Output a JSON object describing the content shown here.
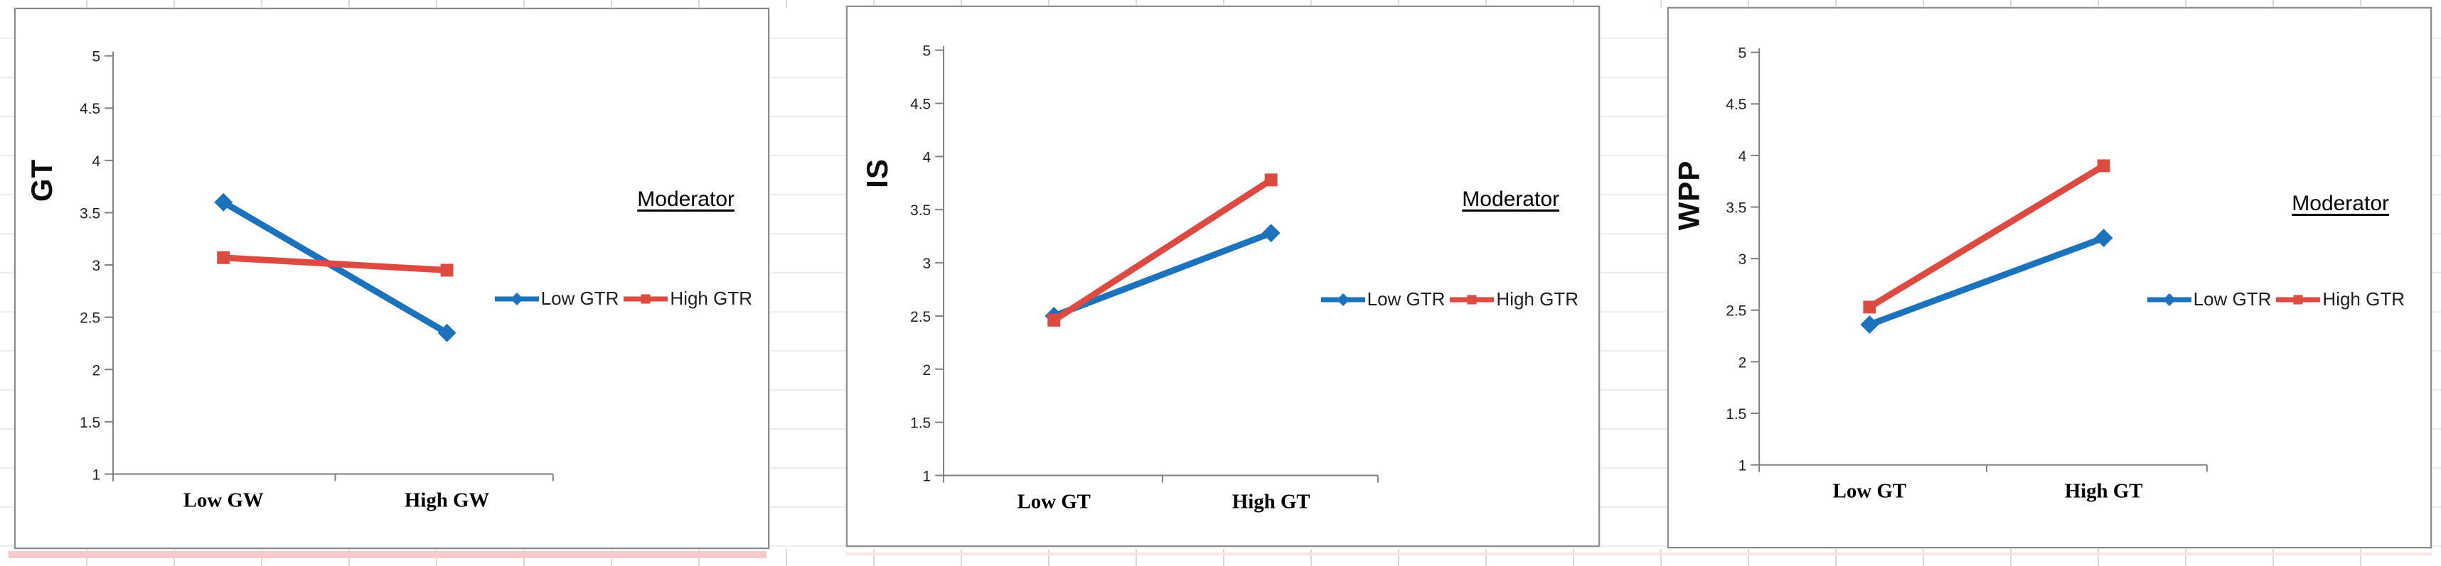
{
  "figure": {
    "description": "Three two-way interaction plots on an Excel worksheet",
    "moderator_heading": "Moderator"
  },
  "colors": {
    "series_low_gtr_blue": "#1C73BC",
    "series_high_gtr_red": "#DC4B42",
    "axis_gray": "#7f7f7f",
    "chart_border_gray": "#8c8c8c",
    "worksheet_row_band_pink": "#F5CACA",
    "worksheet_row_line_pink": "#FBE6E6",
    "worksheet_gridline_gray": "#d9d9d9"
  },
  "chart_data": [
    {
      "type": "line",
      "title": "",
      "xlabel": "",
      "ylabel": "GT",
      "categories": [
        "Low GW",
        "High GW"
      ],
      "series": [
        {
          "name": "Low GTR",
          "marker": "diamond",
          "color": "#1C73BC",
          "values": [
            3.6,
            2.35
          ]
        },
        {
          "name": "High GTR",
          "marker": "square",
          "color": "#DC4B42",
          "values": [
            3.07,
            2.95
          ]
        }
      ],
      "ylim": [
        1,
        5
      ],
      "yticks": [
        1,
        1.5,
        2,
        2.5,
        3,
        3.5,
        4,
        4.5,
        5
      ],
      "grid": false,
      "legend_position": "right",
      "annotation": "Moderator"
    },
    {
      "type": "line",
      "title": "",
      "xlabel": "",
      "ylabel": "IS",
      "categories": [
        "Low GT",
        "High GT"
      ],
      "series": [
        {
          "name": "Low GTR",
          "marker": "diamond",
          "color": "#1C73BC",
          "values": [
            2.5,
            3.28
          ]
        },
        {
          "name": "High GTR",
          "marker": "square",
          "color": "#DC4B42",
          "values": [
            2.46,
            3.78
          ]
        }
      ],
      "ylim": [
        1,
        5
      ],
      "yticks": [
        1,
        1.5,
        2,
        2.5,
        3,
        3.5,
        4,
        4.5,
        5
      ],
      "grid": false,
      "legend_position": "right",
      "annotation": "Moderator"
    },
    {
      "type": "line",
      "title": "",
      "xlabel": "",
      "ylabel": "WPP",
      "categories": [
        "Low GT",
        "High GT"
      ],
      "series": [
        {
          "name": "Low GTR",
          "marker": "diamond",
          "color": "#1C73BC",
          "values": [
            2.36,
            3.2
          ]
        },
        {
          "name": "High GTR",
          "marker": "square",
          "color": "#DC4B42",
          "values": [
            2.53,
            3.9
          ]
        }
      ],
      "ylim": [
        1,
        5
      ],
      "yticks": [
        1,
        1.5,
        2,
        2.5,
        3,
        3.5,
        4,
        4.5,
        5
      ],
      "grid": false,
      "legend_position": "right",
      "annotation": "Moderator"
    }
  ]
}
